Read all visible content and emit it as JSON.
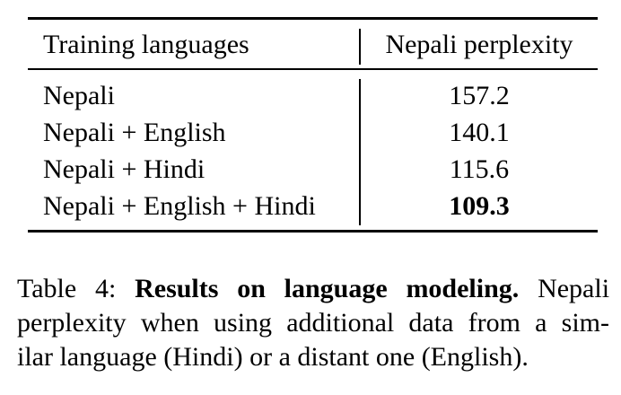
{
  "table": {
    "headers": [
      "Training languages",
      "Nepali perplexity"
    ],
    "rows": [
      {
        "training": "Nepali",
        "perplexity": "157.2"
      },
      {
        "training": "Nepali + English",
        "perplexity": "140.1"
      },
      {
        "training": "Nepali + Hindi",
        "perplexity": "115.6"
      },
      {
        "training": "Nepali + English + Hindi",
        "perplexity": "109.3"
      }
    ]
  },
  "caption": {
    "label": "Table 4:",
    "bold_title": "Results on language modeling.",
    "line1_rest": "Nepali",
    "line2": "perplexity when using additional data from a sim-",
    "line3": "ilar language (Hindi) or a distant one (English)."
  }
}
